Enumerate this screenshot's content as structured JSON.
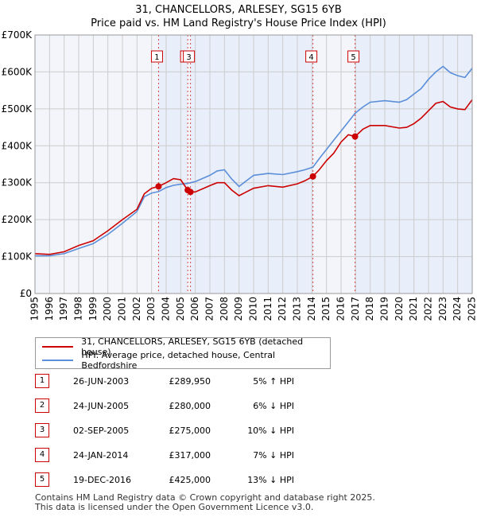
{
  "title_line1": "31, CHANCELLORS, ARLESEY, SG15 6YB",
  "title_line2": "Price paid vs. HM Land Registry's House Price Index (HPI)",
  "chart_data": {
    "type": "line",
    "x_range": [
      1995,
      2025
    ],
    "y_range": [
      0,
      700000
    ],
    "y_ticks": [
      {
        "value": 0,
        "label": "£0"
      },
      {
        "value": 100000,
        "label": "£100K"
      },
      {
        "value": 200000,
        "label": "£200K"
      },
      {
        "value": 300000,
        "label": "£300K"
      },
      {
        "value": 400000,
        "label": "£400K"
      },
      {
        "value": 500000,
        "label": "£500K"
      },
      {
        "value": 600000,
        "label": "£600K"
      },
      {
        "value": 700000,
        "label": "£700K"
      }
    ],
    "x_ticks": [
      "1995",
      "1996",
      "1997",
      "1998",
      "1999",
      "2000",
      "2001",
      "2002",
      "2003",
      "2004",
      "2005",
      "2006",
      "2007",
      "2008",
      "2009",
      "2010",
      "2011",
      "2012",
      "2013",
      "2014",
      "2015",
      "2016",
      "2017",
      "2018",
      "2019",
      "2020",
      "2021",
      "2022",
      "2023",
      "2024",
      "2025"
    ],
    "series": [
      {
        "name": "31, CHANCELLORS, ARLESEY, SG15 6YB (detached house)",
        "color": "#cc0000",
        "points": [
          [
            1995.0,
            108000
          ],
          [
            1996.0,
            106000
          ],
          [
            1997.0,
            113000
          ],
          [
            1998.0,
            130000
          ],
          [
            1999.0,
            143000
          ],
          [
            2000.0,
            170000
          ],
          [
            2001.0,
            200000
          ],
          [
            2002.0,
            228000
          ],
          [
            2002.5,
            270000
          ],
          [
            2003.0,
            285000
          ],
          [
            2003.48,
            289950
          ],
          [
            2004.0,
            300000
          ],
          [
            2004.5,
            311000
          ],
          [
            2005.0,
            308000
          ],
          [
            2005.48,
            280000
          ],
          [
            2005.67,
            275000
          ],
          [
            2006.0,
            275000
          ],
          [
            2007.0,
            292000
          ],
          [
            2007.5,
            300000
          ],
          [
            2008.0,
            300000
          ],
          [
            2008.5,
            280000
          ],
          [
            2009.0,
            265000
          ],
          [
            2009.5,
            275000
          ],
          [
            2010.0,
            285000
          ],
          [
            2011.0,
            292000
          ],
          [
            2012.0,
            288000
          ],
          [
            2013.0,
            297000
          ],
          [
            2013.5,
            305000
          ],
          [
            2014.07,
            317000
          ],
          [
            2014.5,
            335000
          ],
          [
            2015.0,
            360000
          ],
          [
            2015.5,
            380000
          ],
          [
            2016.0,
            410000
          ],
          [
            2016.5,
            430000
          ],
          [
            2016.96,
            425000
          ],
          [
            2017.5,
            445000
          ],
          [
            2018.0,
            455000
          ],
          [
            2019.0,
            455000
          ],
          [
            2020.0,
            448000
          ],
          [
            2020.5,
            450000
          ],
          [
            2021.0,
            460000
          ],
          [
            2021.5,
            475000
          ],
          [
            2022.0,
            495000
          ],
          [
            2022.5,
            515000
          ],
          [
            2023.0,
            520000
          ],
          [
            2023.5,
            505000
          ],
          [
            2024.0,
            500000
          ],
          [
            2024.5,
            498000
          ],
          [
            2025.0,
            525000
          ]
        ]
      },
      {
        "name": "HPI: Average price, detached house, Central Bedfordshire",
        "color": "#5b8fd9",
        "points": [
          [
            1995.0,
            102000
          ],
          [
            1996.0,
            102000
          ],
          [
            1997.0,
            108000
          ],
          [
            1998.0,
            122000
          ],
          [
            1999.0,
            135000
          ],
          [
            2000.0,
            160000
          ],
          [
            2001.0,
            190000
          ],
          [
            2002.0,
            222000
          ],
          [
            2002.5,
            262000
          ],
          [
            2003.0,
            272000
          ],
          [
            2003.48,
            276000
          ],
          [
            2004.0,
            287000
          ],
          [
            2004.5,
            293000
          ],
          [
            2005.0,
            296000
          ],
          [
            2005.48,
            298000
          ],
          [
            2005.67,
            300000
          ],
          [
            2006.0,
            303000
          ],
          [
            2007.0,
            320000
          ],
          [
            2007.5,
            332000
          ],
          [
            2008.0,
            335000
          ],
          [
            2008.5,
            310000
          ],
          [
            2009.0,
            290000
          ],
          [
            2009.5,
            305000
          ],
          [
            2010.0,
            320000
          ],
          [
            2011.0,
            325000
          ],
          [
            2012.0,
            322000
          ],
          [
            2013.0,
            330000
          ],
          [
            2013.5,
            335000
          ],
          [
            2014.07,
            342000
          ],
          [
            2014.5,
            365000
          ],
          [
            2015.0,
            390000
          ],
          [
            2015.5,
            415000
          ],
          [
            2016.0,
            440000
          ],
          [
            2016.5,
            465000
          ],
          [
            2016.96,
            488000
          ],
          [
            2017.5,
            505000
          ],
          [
            2018.0,
            518000
          ],
          [
            2019.0,
            522000
          ],
          [
            2020.0,
            518000
          ],
          [
            2020.5,
            525000
          ],
          [
            2021.0,
            540000
          ],
          [
            2021.5,
            555000
          ],
          [
            2022.0,
            580000
          ],
          [
            2022.5,
            600000
          ],
          [
            2023.0,
            615000
          ],
          [
            2023.5,
            598000
          ],
          [
            2024.0,
            590000
          ],
          [
            2024.5,
            585000
          ],
          [
            2025.0,
            610000
          ]
        ]
      }
    ],
    "sales": [
      {
        "num": "1",
        "x": 2003.48,
        "price": 289950,
        "date": "26-JUN-2003",
        "price_label": "£289,950",
        "hpi": "5% ↑ HPI"
      },
      {
        "num": "2",
        "x": 2005.48,
        "price": 280000,
        "date": "24-JUN-2005",
        "price_label": "£280,000",
        "hpi": "6% ↓ HPI"
      },
      {
        "num": "3",
        "x": 2005.67,
        "price": 275000,
        "date": "02-SEP-2005",
        "price_label": "£275,000",
        "hpi": "10% ↓ HPI"
      },
      {
        "num": "4",
        "x": 2014.07,
        "price": 317000,
        "date": "24-JAN-2014",
        "price_label": "£317,000",
        "hpi": "7% ↓ HPI"
      },
      {
        "num": "5",
        "x": 2016.96,
        "price": 425000,
        "date": "19-DEC-2016",
        "price_label": "£425,000",
        "hpi": "13% ↓ HPI"
      }
    ],
    "shaded_spans": [
      [
        2003.48,
        2005.48
      ],
      [
        2005.67,
        2014.07
      ],
      [
        2016.96,
        2025.0
      ]
    ]
  },
  "legend": {
    "property": "31, CHANCELLORS, ARLESEY, SG15 6YB (detached house)",
    "hpi": "HPI: Average price, detached house, Central Bedfordshire"
  },
  "footer": {
    "line1": "Contains HM Land Registry data © Crown copyright and database right 2025.",
    "line2": "This data is licensed under the Open Government Licence v3.0."
  },
  "colors": {
    "property": "#cc0000",
    "hpi": "#5b8fd9",
    "shade": "#e8eefa",
    "grid": "#cccccc",
    "plot_bg": "#f3f5fa"
  }
}
